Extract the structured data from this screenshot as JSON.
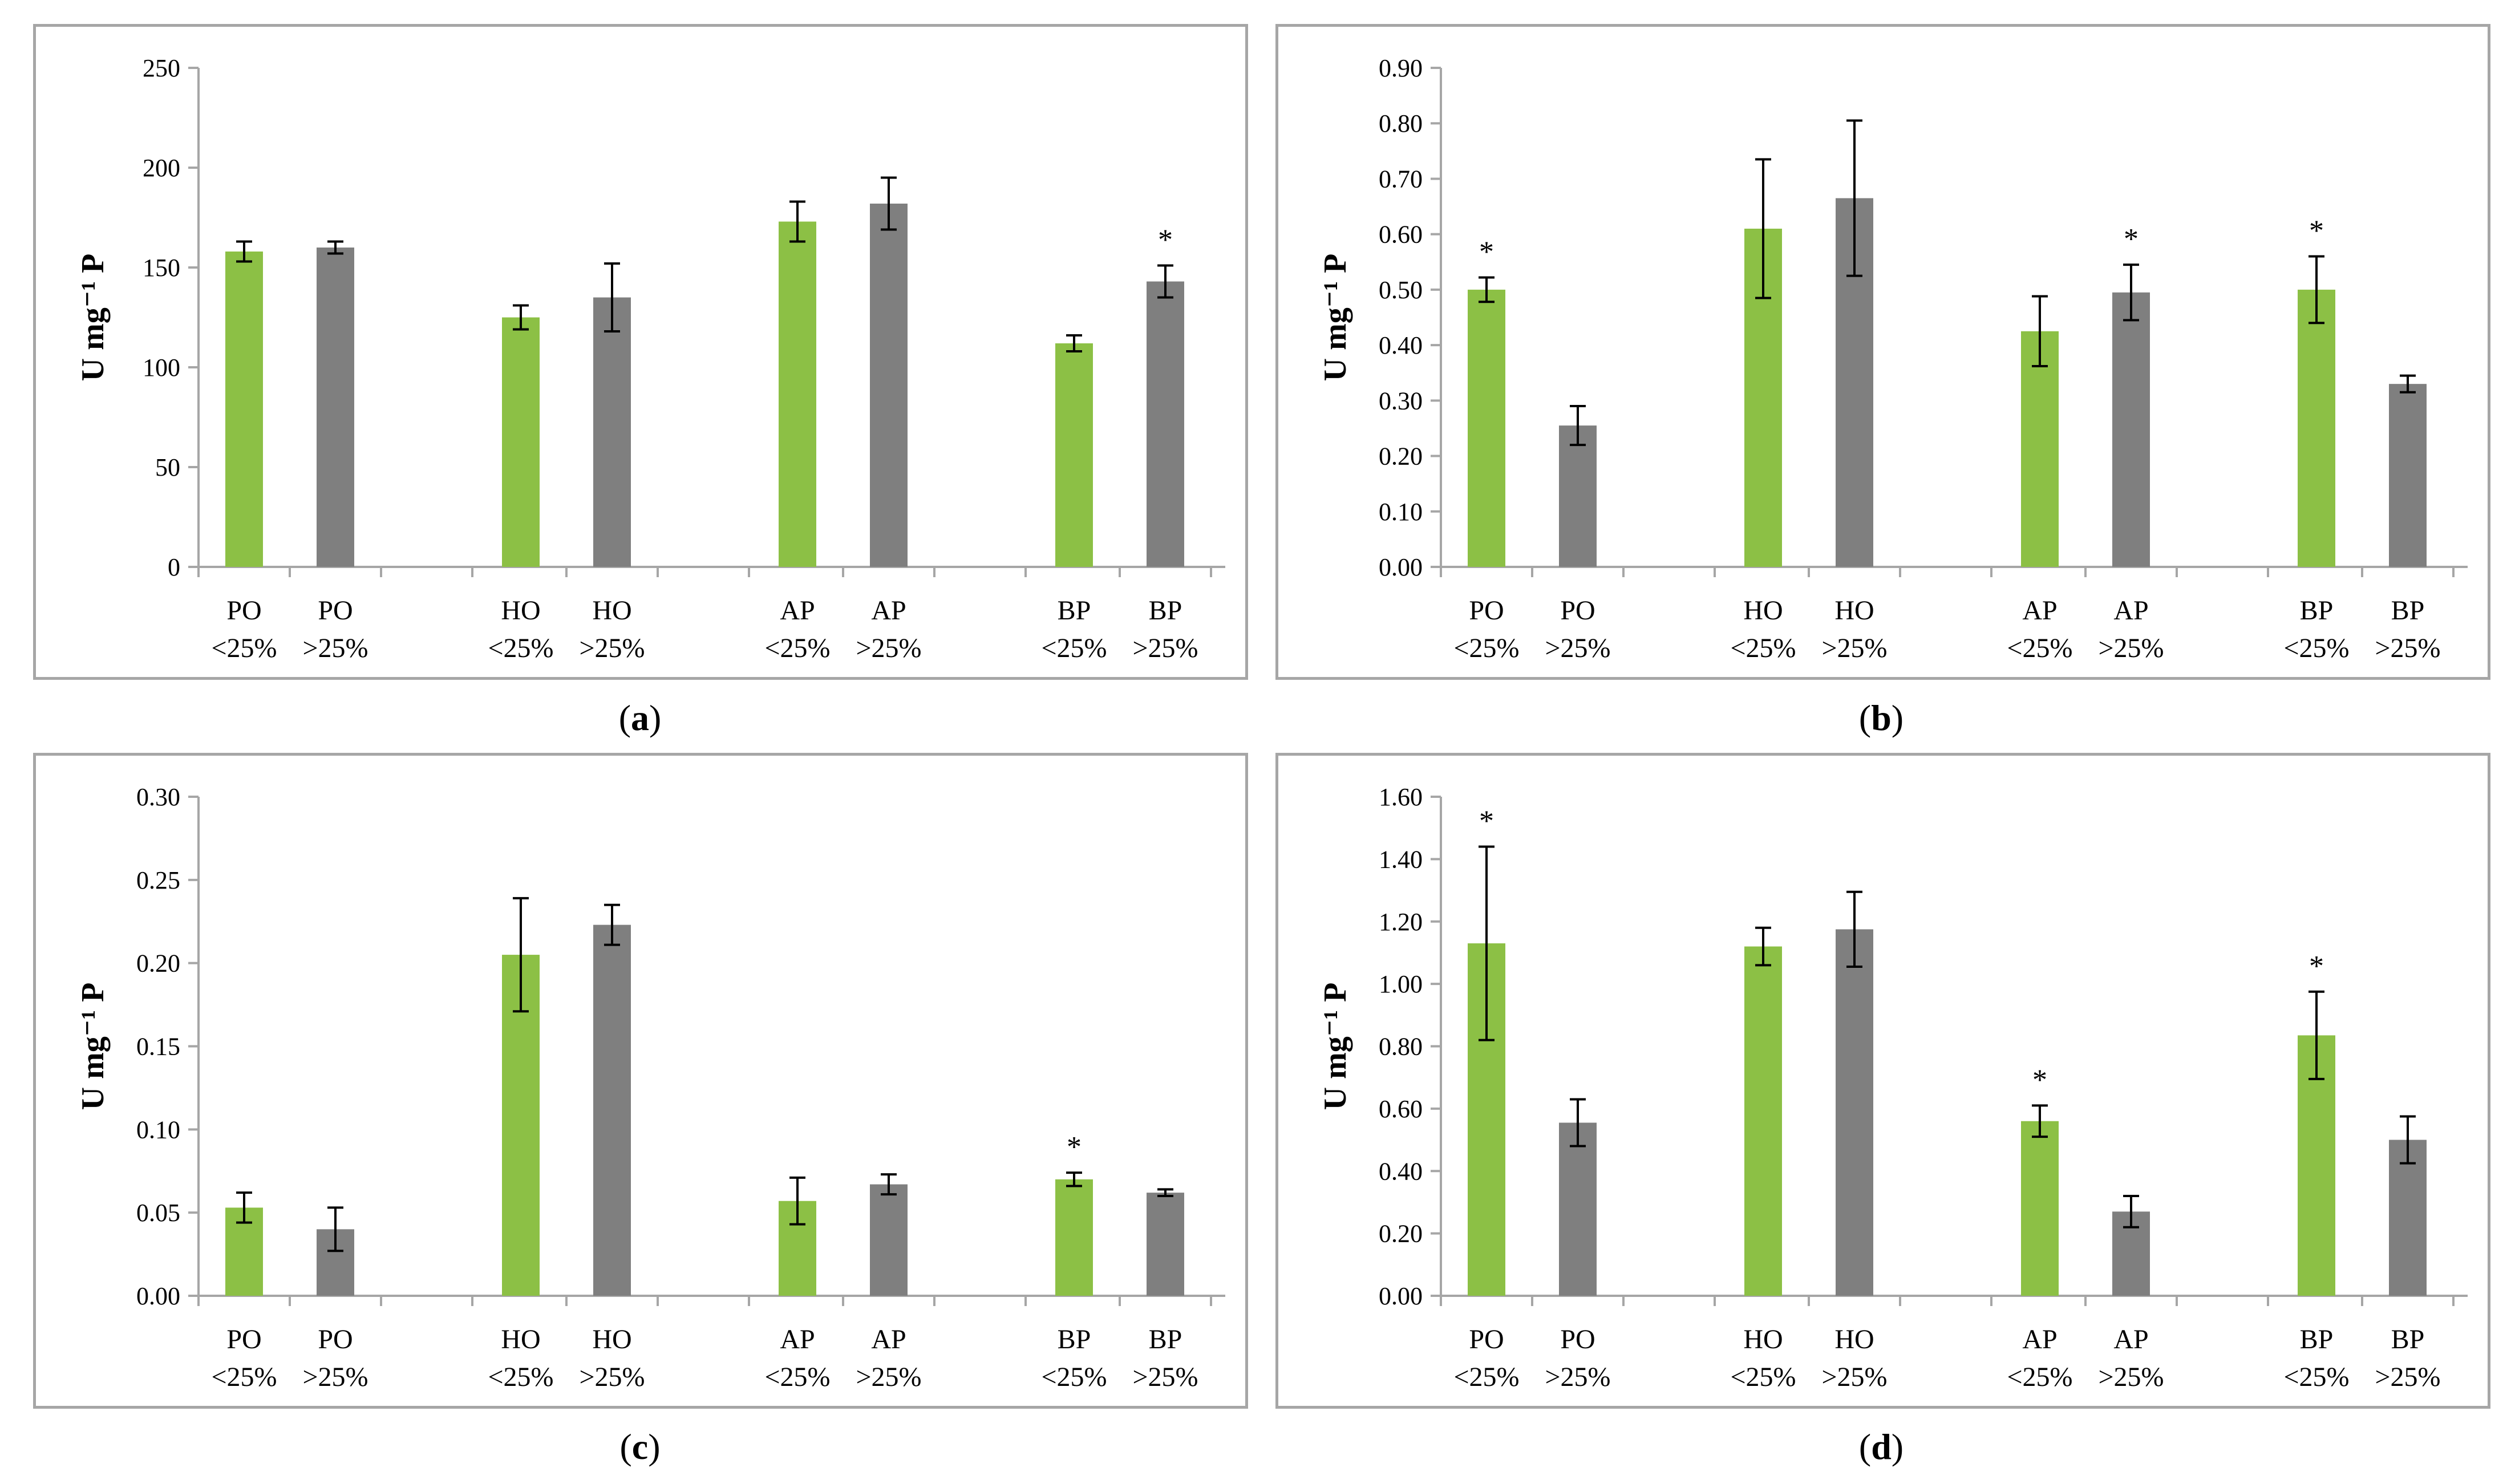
{
  "colors": {
    "green": "#8cc045",
    "gray": "#7f7f7f",
    "axis": "#a6a6a6",
    "text": "#000000"
  },
  "captions": [
    "a",
    "b",
    "c",
    "d"
  ],
  "chart_data": [
    {
      "type": "bar",
      "panel": "a",
      "ylabel": "U mg⁻¹ P",
      "ylim": [
        0,
        250
      ],
      "yticks": [
        "0",
        "50",
        "100",
        "150",
        "200",
        "250"
      ],
      "ytick_values": [
        0,
        50,
        100,
        150,
        200,
        250
      ],
      "categories": [
        [
          "PO",
          "<25%"
        ],
        [
          "PO",
          ">25%"
        ],
        [
          "HO",
          "<25%"
        ],
        [
          "HO",
          ">25%"
        ],
        [
          "AP",
          "<25%"
        ],
        [
          "AP",
          ">25%"
        ],
        [
          "BP",
          "<25%"
        ],
        [
          "BP",
          ">25%"
        ]
      ],
      "values": [
        158,
        160,
        125,
        135,
        173,
        182,
        112,
        143
      ],
      "errors": [
        5,
        3,
        6,
        17,
        10,
        13,
        4,
        8
      ],
      "significant": [
        false,
        false,
        false,
        false,
        false,
        false,
        false,
        true
      ],
      "star_label": "*"
    },
    {
      "type": "bar",
      "panel": "b",
      "ylabel": "U mg⁻¹ P",
      "ylim": [
        0,
        0.9
      ],
      "yticks": [
        "0.00",
        "0.10",
        "0.20",
        "0.30",
        "0.40",
        "0.50",
        "0.60",
        "0.70",
        "0.80",
        "0.90"
      ],
      "ytick_values": [
        0,
        0.1,
        0.2,
        0.3,
        0.4,
        0.5,
        0.6,
        0.7,
        0.8,
        0.9
      ],
      "categories": [
        [
          "PO",
          "<25%"
        ],
        [
          "PO",
          ">25%"
        ],
        [
          "HO",
          "<25%"
        ],
        [
          "HO",
          ">25%"
        ],
        [
          "AP",
          "<25%"
        ],
        [
          "AP",
          ">25%"
        ],
        [
          "BP",
          "<25%"
        ],
        [
          "BP",
          ">25%"
        ]
      ],
      "values": [
        0.5,
        0.255,
        0.61,
        0.665,
        0.425,
        0.495,
        0.5,
        0.33
      ],
      "errors": [
        0.022,
        0.035,
        0.125,
        0.14,
        0.063,
        0.05,
        0.06,
        0.015
      ],
      "significant": [
        true,
        false,
        false,
        false,
        false,
        true,
        true,
        false
      ],
      "star_label": "*"
    },
    {
      "type": "bar",
      "panel": "c",
      "ylabel": "U mg⁻¹ P",
      "ylim": [
        0,
        0.3
      ],
      "yticks": [
        "0.00",
        "0.05",
        "0.10",
        "0.15",
        "0.20",
        "0.25",
        "0.30"
      ],
      "ytick_values": [
        0,
        0.05,
        0.1,
        0.15,
        0.2,
        0.25,
        0.3
      ],
      "categories": [
        [
          "PO",
          "<25%"
        ],
        [
          "PO",
          ">25%"
        ],
        [
          "HO",
          "<25%"
        ],
        [
          "HO",
          ">25%"
        ],
        [
          "AP",
          "<25%"
        ],
        [
          "AP",
          ">25%"
        ],
        [
          "BP",
          "<25%"
        ],
        [
          "BP",
          ">25%"
        ]
      ],
      "values": [
        0.053,
        0.04,
        0.205,
        0.223,
        0.057,
        0.067,
        0.07,
        0.062
      ],
      "errors": [
        0.009,
        0.013,
        0.034,
        0.012,
        0.014,
        0.006,
        0.004,
        0.002
      ],
      "significant": [
        false,
        false,
        false,
        false,
        false,
        false,
        true,
        false
      ],
      "star_label": "*"
    },
    {
      "type": "bar",
      "panel": "d",
      "ylabel": "U mg⁻¹ P",
      "ylim": [
        0,
        1.6
      ],
      "yticks": [
        "0.00",
        "0.20",
        "0.40",
        "0.60",
        "0.80",
        "1.00",
        "1.20",
        "1.40",
        "1.60"
      ],
      "ytick_values": [
        0,
        0.2,
        0.4,
        0.6,
        0.8,
        1.0,
        1.2,
        1.4,
        1.6
      ],
      "categories": [
        [
          "PO",
          "<25%"
        ],
        [
          "PO",
          ">25%"
        ],
        [
          "HO",
          "<25%"
        ],
        [
          "HO",
          ">25%"
        ],
        [
          "AP",
          "<25%"
        ],
        [
          "AP",
          ">25%"
        ],
        [
          "BP",
          "<25%"
        ],
        [
          "BP",
          ">25%"
        ]
      ],
      "values": [
        1.13,
        0.555,
        1.12,
        1.175,
        0.56,
        0.27,
        0.835,
        0.5
      ],
      "errors": [
        0.31,
        0.075,
        0.06,
        0.12,
        0.05,
        0.05,
        0.14,
        0.075
      ],
      "significant": [
        true,
        false,
        false,
        false,
        true,
        false,
        true,
        false
      ],
      "star_label": "*"
    }
  ]
}
